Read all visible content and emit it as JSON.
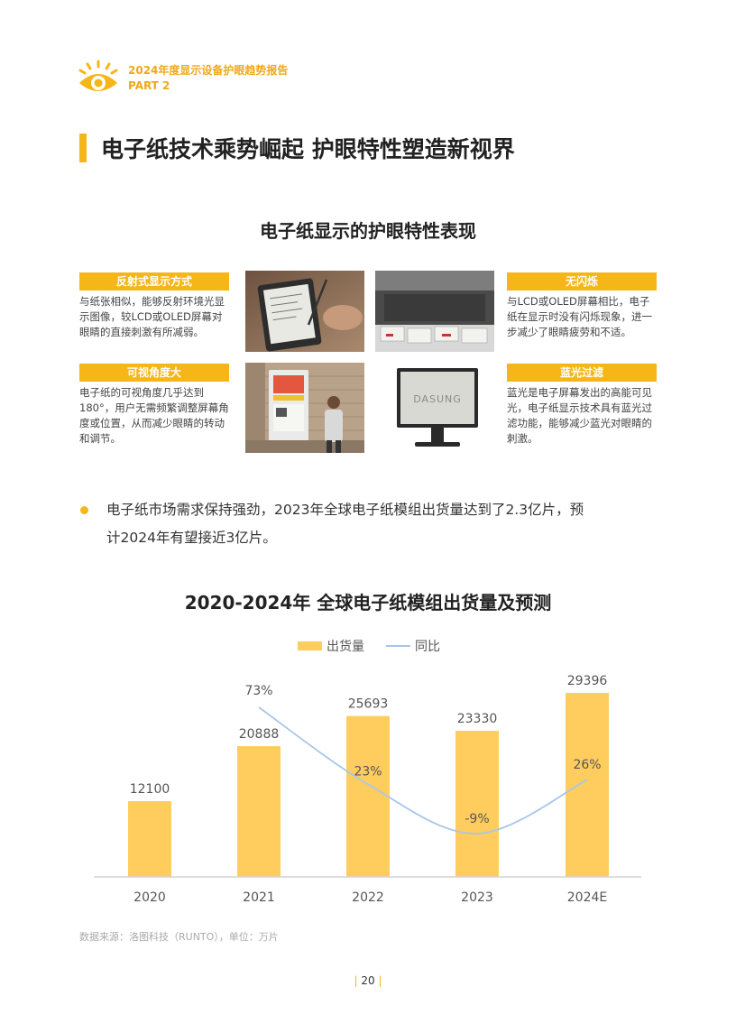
{
  "header": {
    "report_title": "2024年度显示设备护眼趋势报告",
    "part": "PART 2"
  },
  "section": {
    "title": "电子纸技术乘势崛起  护眼特性塑造新视界"
  },
  "features_title": "电子纸显示的护眼特性表现",
  "features": [
    {
      "label": "反射式显示方式",
      "desc": "与纸张相似，能够反射环境光显示图像，较LCD或OLED屏幕对眼睛的直接刺激有所减弱。"
    },
    {
      "label": "可视角度大",
      "desc": "电子纸的可视角度几乎达到180°，用户无需频繁调整屏幕角度或位置，从而减少眼睛的转动和调节。"
    },
    {
      "label": "无闪烁",
      "desc": "与LCD或OLED屏幕相比，电子纸在显示时没有闪烁现象，进一步减少了眼睛疲劳和不适。"
    },
    {
      "label": "蓝光过滤",
      "desc": "蓝光是电子屏幕发出的高能可见光，电子纸显示技术具有蓝光过滤功能，能够减少蓝光对眼睛的刺激。"
    }
  ],
  "monitor_brand": "DASUNG",
  "bullet": {
    "line1": "电子纸市场需求保持强劲，2023年全球电子纸模组出货量达到了2.3亿片，预",
    "line2": "计2024年有望接近3亿片。"
  },
  "colors": {
    "accent": "#f6b619",
    "bar": "#fecd5e",
    "line": "#a8c6e8"
  },
  "chart_data": {
    "type": "bar",
    "title": "2020-2024年 全球电子纸模组出货量及预测",
    "categories": [
      "2020",
      "2021",
      "2022",
      "2023",
      "2024E"
    ],
    "series": [
      {
        "name": "出货量",
        "type": "bar",
        "values": [
          12100,
          20888,
          25693,
          23330,
          29396
        ]
      },
      {
        "name": "同比",
        "type": "line",
        "values": [
          null,
          73,
          23,
          -9,
          26
        ],
        "labels": [
          "",
          "73%",
          "23%",
          "-9%",
          "26%"
        ]
      }
    ],
    "legend": "top-center",
    "grid": false
  },
  "source": "数据来源：洛图科技（RUNTO），单位：万片",
  "page_number": "20"
}
